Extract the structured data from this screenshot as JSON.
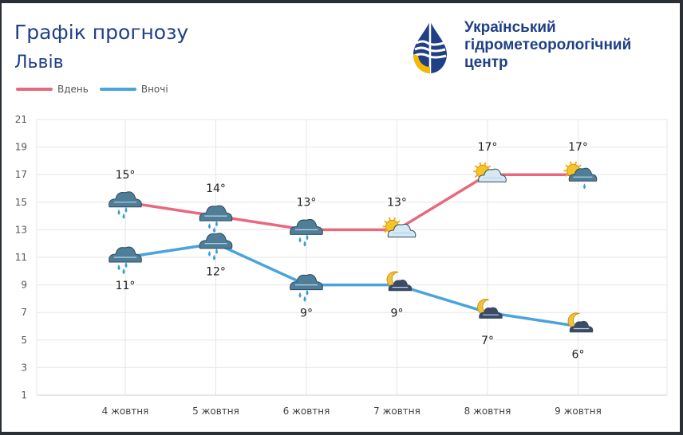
{
  "title": "Графік прогнозу",
  "city": "Львів",
  "brand": {
    "name": "Український гідрометеорологічний центр",
    "logo": "water-drop-logo",
    "colors": {
      "navy": "#1f3f86",
      "yellow": "#f6b800"
    }
  },
  "chart_data": {
    "type": "line",
    "categories": [
      "4 жовтня",
      "5 жовтня",
      "6 жовтня",
      "7 жовтня",
      "8 жовтня",
      "9 жовтня"
    ],
    "series": [
      {
        "name": "Вдень",
        "color": "#e8687e",
        "values": [
          15,
          14,
          13,
          13,
          17,
          17
        ],
        "labels": [
          "15°",
          "14°",
          "13°",
          "13°",
          "17°",
          "17°"
        ],
        "icons": [
          "rain-cloud-icon",
          "rain-cloud-icon",
          "rain-cloud-icon",
          "sun-cloud-icon",
          "sun-cloud-icon",
          "sun-rain-cloud-icon"
        ]
      },
      {
        "name": "Вночі",
        "color": "#4aa3dc",
        "values": [
          11,
          12,
          9,
          9,
          7,
          6
        ],
        "labels": [
          "11°",
          "12°",
          "9°",
          "9°",
          "7°",
          "6°"
        ],
        "icons": [
          "rain-cloud-icon",
          "rain-cloud-icon",
          "rain-cloud-icon",
          "moon-cloud-icon",
          "moon-cloud-icon",
          "moon-cloud-icon"
        ]
      }
    ],
    "y_ticks": [
      "1",
      "3",
      "5",
      "7",
      "9",
      "11",
      "13",
      "15",
      "17",
      "19",
      "21"
    ],
    "ylim": [
      1,
      21
    ],
    "grid": true,
    "legend_position": "top-left"
  }
}
